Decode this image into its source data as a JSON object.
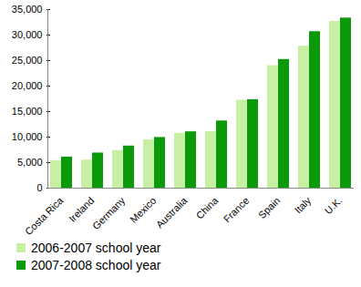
{
  "chart_data": {
    "type": "bar",
    "categories": [
      "Costa Rica",
      "Ireland",
      "Germany",
      "Mexico",
      "Australia",
      "China",
      "France",
      "Spain",
      "Italy",
      "U.K."
    ],
    "series": [
      {
        "name": "2006-2007 school year",
        "color": "#c8f0a4",
        "values": [
          5383,
          5499,
          7355,
          9461,
          10747,
          11064,
          17233,
          24005,
          27831,
          32705
        ]
      },
      {
        "name": "2007-2008 school year",
        "color": "#0a9a0a",
        "values": [
          6096,
          6881,
          8253,
          9928,
          11042,
          13165,
          17336,
          25212,
          30670,
          33333
        ]
      }
    ],
    "ylim": [
      0,
      35000
    ],
    "yticks": [
      0,
      {
        "value": 5000,
        "label": "5,000"
      },
      {
        "value": 10000,
        "label": "10,000"
      },
      {
        "value": 15000,
        "label": "15,000"
      },
      {
        "value": 20000,
        "label": "20,000"
      },
      {
        "value": 25000,
        "label": "25,000"
      },
      {
        "value": 30000,
        "label": "30,000"
      },
      {
        "value": 35000,
        "label": "35,000"
      }
    ],
    "grid": false,
    "legend": "bottom"
  }
}
